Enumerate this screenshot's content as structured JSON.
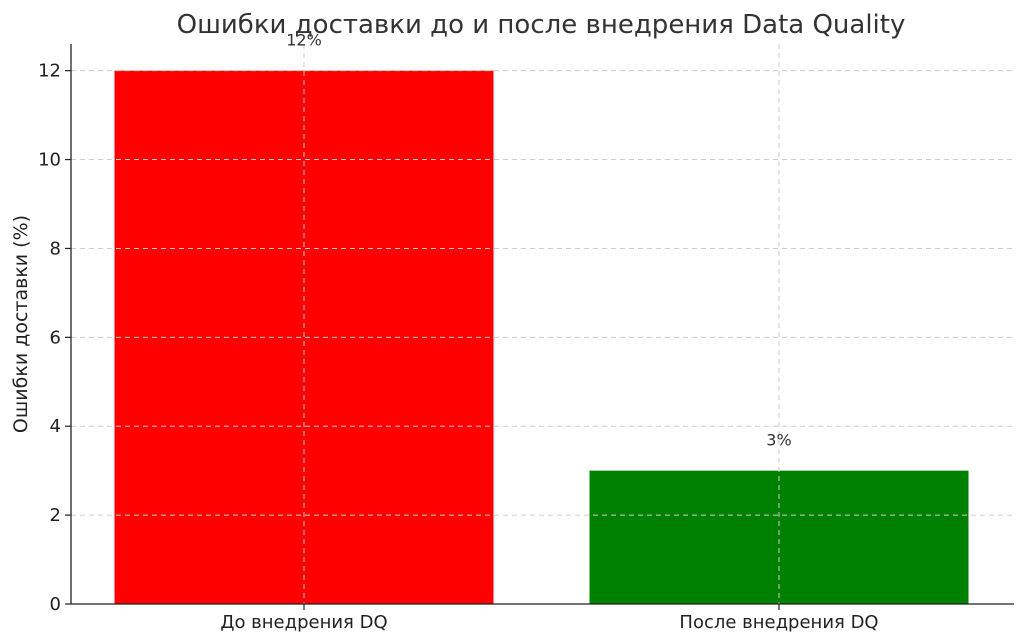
{
  "chart_data": {
    "type": "bar",
    "title": "Ошибки доставки до и после внедрения Data Quality",
    "xlabel": "",
    "ylabel": "Ошибки доставки (%)",
    "categories": [
      "До внедрения DQ",
      "После внедрения DQ"
    ],
    "values": [
      12,
      3
    ],
    "data_labels": [
      "12%",
      "3%"
    ],
    "colors": [
      "#ff0000",
      "#008000"
    ],
    "ylim": [
      0,
      12.6
    ],
    "yticks": [
      0,
      2,
      4,
      6,
      8,
      10,
      12
    ],
    "grid": true
  }
}
